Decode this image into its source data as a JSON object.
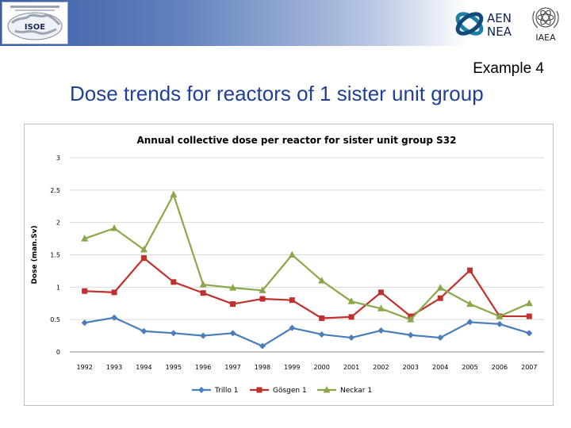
{
  "header": {
    "isoe_logo_text": "ISOE",
    "nea_logo_line1": "AEN",
    "nea_logo_line2": "NEA",
    "iaea_logo_text": "IAEA"
  },
  "slide": {
    "subtitle": "Example 4",
    "title": "Dose trends for reactors of 1 sister unit group"
  },
  "chart_data": {
    "type": "line",
    "title": "Annual collective dose per reactor for sister unit group S32",
    "xlabel": "",
    "ylabel": "Dose (man.Sv)",
    "ylim": [
      0,
      3
    ],
    "yticks": [
      0,
      0.5,
      1,
      1.5,
      2,
      2.5,
      3
    ],
    "ytick_labels": [
      "0",
      "0.5",
      "1",
      "1.5",
      "2",
      "2.5",
      "3"
    ],
    "grid": true,
    "legend_position": "bottom",
    "categories": [
      "1992",
      "1993",
      "1994",
      "1995",
      "1996",
      "1997",
      "1998",
      "1999",
      "2000",
      "2001",
      "2002",
      "2003",
      "2004",
      "2005",
      "2006",
      "2007"
    ],
    "series": [
      {
        "name": "Trillo 1",
        "color": "#4a7ebb",
        "marker": "diamond",
        "values": [
          0.45,
          0.53,
          0.32,
          0.29,
          0.25,
          0.29,
          0.09,
          0.37,
          0.27,
          0.22,
          0.33,
          0.26,
          0.22,
          0.46,
          0.43,
          0.29
        ]
      },
      {
        "name": "Gösgen 1",
        "color": "#c0302d",
        "marker": "square",
        "values": [
          0.94,
          0.92,
          1.45,
          1.08,
          0.91,
          0.74,
          0.82,
          0.8,
          0.52,
          0.54,
          0.92,
          0.55,
          0.83,
          1.26,
          0.55,
          0.55
        ]
      },
      {
        "name": "Neckar 1",
        "color": "#8aa84a",
        "marker": "triangle",
        "values": [
          1.75,
          1.91,
          1.58,
          2.43,
          1.04,
          0.99,
          0.95,
          1.5,
          1.1,
          0.78,
          0.67,
          0.5,
          0.99,
          0.74,
          0.55,
          0.75
        ]
      }
    ]
  }
}
